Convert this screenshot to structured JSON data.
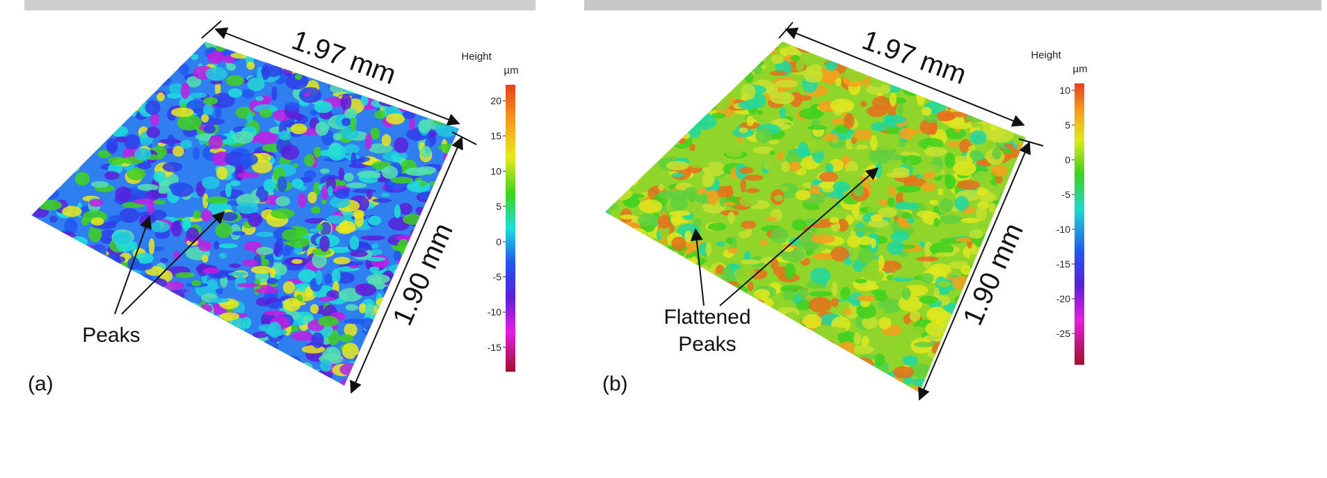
{
  "panels": [
    {
      "label": "(a)",
      "width": "1.97 mm",
      "depth": "1.90 mm",
      "annotation": [
        "Peaks"
      ],
      "colorbar": {
        "title": "Height",
        "unit": "µm",
        "ticks": [
          20,
          15,
          10,
          5,
          0,
          -5,
          -10,
          -15
        ]
      }
    },
    {
      "label": "(b)",
      "width": "1.97 mm",
      "depth": "1.90 mm",
      "annotation": [
        "Flattened",
        "Peaks"
      ],
      "colorbar": {
        "title": "Height",
        "unit": "µm",
        "ticks": [
          10,
          5,
          0,
          -5,
          -10,
          -15,
          -20,
          -25
        ]
      }
    }
  ]
}
